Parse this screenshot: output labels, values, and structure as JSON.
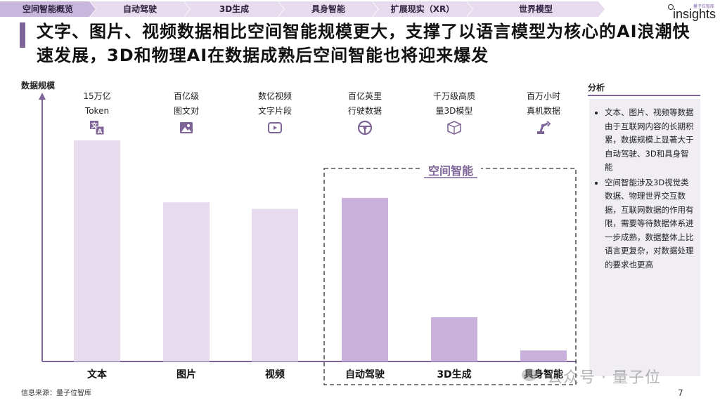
{
  "nav": {
    "items": [
      {
        "label": "空间智能概览",
        "active": true
      },
      {
        "label": "自动驾驶",
        "active": false
      },
      {
        "label": "3D生成",
        "active": false
      },
      {
        "label": "具身智能",
        "active": false
      },
      {
        "label": "扩展现实（XR）",
        "active": false
      },
      {
        "label": "世界模型",
        "active": false
      }
    ]
  },
  "logo": {
    "text": "insights",
    "small": "量子位智库"
  },
  "title": "文字、图片、视频数据相比空间智能规模更大，支撑了以语言模型为核心的AI浪潮快速发展，3D和物理AI在数据成熟后空间智能也将迎来爆发",
  "chart_data": {
    "type": "bar",
    "ylabel": "数据规模",
    "categories": [
      "文本",
      "图片",
      "视频",
      "自动驾驶",
      "3D生成",
      "具身智能"
    ],
    "values": [
      100,
      72,
      69,
      74,
      20,
      5
    ],
    "scale_labels": [
      [
        "15万亿",
        "Token"
      ],
      [
        "百亿级",
        "图文对"
      ],
      [
        "数亿视频",
        "文字片段"
      ],
      [
        "百亿英里",
        "行驶数据"
      ],
      [
        "千万级高质",
        "量3D模型"
      ],
      [
        "百万小时",
        "真机数据"
      ]
    ],
    "icons": [
      "translate-icon",
      "image-icon",
      "video-icon",
      "steering-wheel-icon",
      "cube-icon",
      "robot-arm-icon"
    ],
    "highlight_group": {
      "label": "空间智能",
      "categories": [
        "自动驾驶",
        "3D生成",
        "具身智能"
      ]
    },
    "colors": {
      "base": "#e6dcee",
      "highlight": "#c9b1dc",
      "accent": "#7f6597"
    }
  },
  "analysis": {
    "heading": "分析",
    "bullets": [
      "文本、图片、视频等数据由于互联网内容的长期积累，数据规模上显著大于自动驾驶、3D和具身智能",
      "空间智能涉及3D视觉类数据、物理世界交互数据，互联网数据的作用有限，需要等待数据体系进一步成熟，数据整体上比语言更复杂，对数据处理的要求也更高"
    ]
  },
  "footer": {
    "source": "信息来源：量子位智库",
    "page": "7"
  },
  "watermark": "公众号 · 量子位"
}
